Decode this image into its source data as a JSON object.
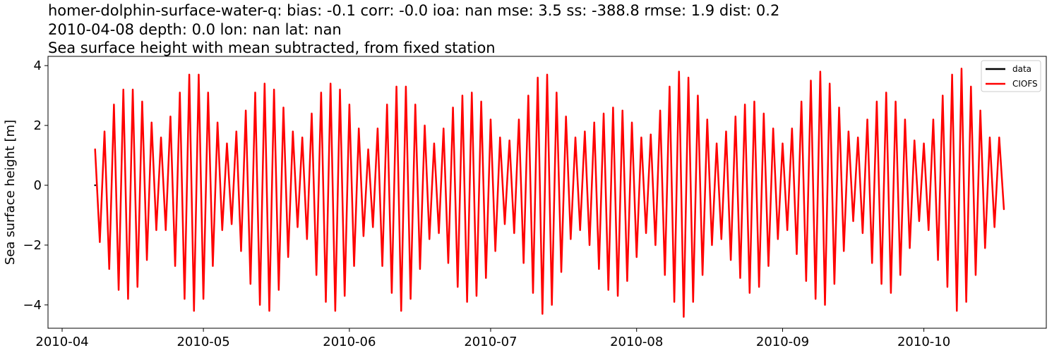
{
  "chart_data": {
    "type": "line",
    "title": "homer-dolphin-surface-water-q: bias: -0.1  corr: -0.0  ioa: nan  mse: 3.5  ss: -388.8  rmse: 1.9  dist: 0.2",
    "subtitle": "2010-04-08 depth: 0.0 lon: nan lat: nan",
    "description": "Sea surface height with mean subtracted, from fixed station",
    "ylabel": "Sea surface height [m]",
    "legend": "upper right",
    "x": [
      "2010-04-08",
      "2010-04-09",
      "2010-04-10",
      "2010-04-11",
      "2010-04-12",
      "2010-04-13",
      "2010-04-14",
      "2010-04-15",
      "2010-04-16",
      "2010-04-17",
      "2010-04-18",
      "2010-04-19",
      "2010-04-20",
      "2010-04-21",
      "2010-04-22",
      "2010-04-23",
      "2010-04-24",
      "2010-04-25",
      "2010-04-26",
      "2010-04-27",
      "2010-04-28",
      "2010-04-29",
      "2010-04-30",
      "2010-05-01",
      "2010-05-02",
      "2010-05-03",
      "2010-05-04",
      "2010-05-05",
      "2010-05-06",
      "2010-05-07",
      "2010-05-08",
      "2010-05-09",
      "2010-05-10",
      "2010-05-11",
      "2010-05-12",
      "2010-05-13",
      "2010-05-14",
      "2010-05-15",
      "2010-05-16",
      "2010-05-17",
      "2010-05-18",
      "2010-05-19",
      "2010-05-20",
      "2010-05-21",
      "2010-05-22",
      "2010-05-23",
      "2010-05-24",
      "2010-05-25",
      "2010-05-26",
      "2010-05-27",
      "2010-05-28",
      "2010-05-29",
      "2010-05-30",
      "2010-05-31",
      "2010-06-01",
      "2010-06-02",
      "2010-06-03",
      "2010-06-04",
      "2010-06-05",
      "2010-06-06",
      "2010-06-07",
      "2010-06-08",
      "2010-06-09",
      "2010-06-10",
      "2010-06-11",
      "2010-06-12",
      "2010-06-13",
      "2010-06-14",
      "2010-06-15",
      "2010-06-16",
      "2010-06-17",
      "2010-06-18",
      "2010-06-19",
      "2010-06-20",
      "2010-06-21",
      "2010-06-22",
      "2010-06-23",
      "2010-06-24",
      "2010-06-25",
      "2010-06-26",
      "2010-06-27",
      "2010-06-28",
      "2010-06-29",
      "2010-06-30",
      "2010-07-01",
      "2010-07-02",
      "2010-07-03",
      "2010-07-04",
      "2010-07-05",
      "2010-07-06",
      "2010-07-07",
      "2010-07-08",
      "2010-07-09",
      "2010-07-10",
      "2010-07-11",
      "2010-07-12",
      "2010-07-13",
      "2010-07-14",
      "2010-07-15",
      "2010-07-16",
      "2010-07-17",
      "2010-07-18",
      "2010-07-19",
      "2010-07-20",
      "2010-07-21",
      "2010-07-22",
      "2010-07-23",
      "2010-07-24",
      "2010-07-25",
      "2010-07-26",
      "2010-07-27",
      "2010-07-28",
      "2010-07-29",
      "2010-07-30",
      "2010-07-31",
      "2010-08-01",
      "2010-08-02",
      "2010-08-03",
      "2010-08-04",
      "2010-08-05",
      "2010-08-06",
      "2010-08-07",
      "2010-08-08",
      "2010-08-09",
      "2010-08-10",
      "2010-08-11",
      "2010-08-12",
      "2010-08-13",
      "2010-08-14",
      "2010-08-15",
      "2010-08-16",
      "2010-08-17",
      "2010-08-18",
      "2010-08-19",
      "2010-08-20",
      "2010-08-21",
      "2010-08-22",
      "2010-08-23",
      "2010-08-24",
      "2010-08-25",
      "2010-08-26",
      "2010-08-27",
      "2010-08-28",
      "2010-08-29",
      "2010-08-30",
      "2010-08-31",
      "2010-09-01",
      "2010-09-02",
      "2010-09-03",
      "2010-09-04",
      "2010-09-05",
      "2010-09-06",
      "2010-09-07",
      "2010-09-08",
      "2010-09-09",
      "2010-09-10",
      "2010-09-11",
      "2010-09-12",
      "2010-09-13",
      "2010-09-14",
      "2010-09-15",
      "2010-09-16",
      "2010-09-17",
      "2010-09-18",
      "2010-09-19",
      "2010-09-20",
      "2010-09-21",
      "2010-09-22",
      "2010-09-23",
      "2010-09-24",
      "2010-09-25",
      "2010-09-26",
      "2010-09-27",
      "2010-09-28",
      "2010-09-29",
      "2010-09-30",
      "2010-10-01",
      "2010-10-02",
      "2010-10-03",
      "2010-10-04",
      "2010-10-05",
      "2010-10-06",
      "2010-10-07",
      "2010-10-08",
      "2010-10-09",
      "2010-10-10",
      "2010-10-11",
      "2010-10-12",
      "2010-10-13",
      "2010-10-14",
      "2010-10-15",
      "2010-10-16",
      "2010-10-17",
      "2010-10-18"
    ],
    "series": [
      {
        "name": "data",
        "color": "#000000",
        "values": [
          0,
          null,
          null,
          null,
          null,
          null,
          null,
          null,
          null,
          null,
          null,
          null,
          null,
          null,
          null,
          null,
          null,
          null,
          null,
          null,
          null,
          null,
          null,
          null,
          null,
          null,
          null,
          null,
          null,
          null,
          null,
          null,
          null,
          null,
          null,
          null,
          null,
          null,
          null,
          null,
          null,
          null,
          null,
          null,
          null,
          null,
          null,
          null,
          null,
          null,
          null,
          null,
          null,
          null,
          null,
          null,
          null,
          null,
          null,
          null,
          null,
          null,
          null,
          null,
          null,
          null,
          null,
          null,
          null,
          null,
          null,
          null,
          null,
          null,
          null,
          null,
          null,
          null,
          null,
          null,
          null,
          null,
          null,
          null,
          null,
          null,
          null,
          null,
          null,
          null,
          null,
          null,
          null,
          null,
          null,
          null,
          null,
          null,
          null,
          null,
          null,
          null,
          null,
          null,
          null,
          null,
          null,
          null,
          null,
          null,
          null,
          null,
          null,
          null,
          null,
          null,
          null,
          null,
          null,
          null,
          null,
          null,
          null,
          null,
          null,
          null,
          null,
          null,
          null,
          null,
          null,
          null,
          null,
          null,
          null,
          null,
          null,
          null,
          null,
          null,
          null,
          null,
          null,
          null,
          null,
          null,
          null,
          null,
          null,
          null,
          null,
          null,
          null,
          null,
          null,
          null,
          null,
          null,
          null,
          null,
          null,
          null,
          null,
          null,
          null,
          null,
          null,
          null,
          null,
          null,
          null,
          null,
          null,
          null,
          null,
          null,
          null,
          null,
          null,
          null,
          null,
          null,
          null,
          null,
          null,
          null,
          null,
          null,
          null,
          null,
          null,
          null,
          null,
          null
        ]
      },
      {
        "name": "CIOFS",
        "color": "#ff0000",
        "values": [
          1.2,
          -1.9,
          1.8,
          -2.8,
          2.7,
          -3.5,
          3.2,
          -3.8,
          3.2,
          -3.4,
          2.8,
          -2.5,
          2.1,
          -1.5,
          1.6,
          -1.5,
          2.3,
          -2.7,
          3.1,
          -3.8,
          3.7,
          -4.2,
          3.7,
          -3.8,
          3.1,
          -2.7,
          2.1,
          -1.5,
          1.4,
          -1.3,
          1.8,
          -2.2,
          2.5,
          -3.3,
          3.1,
          -4.0,
          3.4,
          -4.2,
          3.2,
          -3.5,
          2.6,
          -2.4,
          1.8,
          -1.4,
          1.6,
          -1.8,
          2.4,
          -3.0,
          3.1,
          -3.9,
          3.4,
          -4.2,
          3.2,
          -3.7,
          2.7,
          -2.7,
          1.9,
          -1.7,
          1.2,
          -1.4,
          1.9,
          -2.7,
          2.7,
          -3.6,
          3.3,
          -4.2,
          3.3,
          -3.8,
          2.7,
          -2.8,
          2.0,
          -1.8,
          1.4,
          -1.6,
          1.9,
          -2.6,
          2.6,
          -3.4,
          3.0,
          -3.9,
          3.1,
          -3.7,
          2.8,
          -3.1,
          2.2,
          -2.2,
          1.6,
          -1.3,
          1.5,
          -1.6,
          2.2,
          -2.6,
          3.0,
          -3.6,
          3.6,
          -4.3,
          3.7,
          -4.0,
          3.1,
          -2.9,
          2.3,
          -1.8,
          1.6,
          -1.5,
          1.8,
          -2.0,
          2.1,
          -2.8,
          2.4,
          -3.5,
          2.6,
          -3.7,
          2.5,
          -3.2,
          2.1,
          -2.4,
          1.6,
          -1.6,
          1.7,
          -2.0,
          2.5,
          -3.0,
          3.3,
          -3.9,
          3.8,
          -4.4,
          3.6,
          -3.9,
          3.0,
          -3.0,
          2.2,
          -2.0,
          1.4,
          -1.8,
          1.8,
          -2.5,
          2.3,
          -3.1,
          2.7,
          -3.6,
          2.8,
          -3.4,
          2.4,
          -2.7,
          1.9,
          -1.8,
          1.4,
          -1.5,
          1.9,
          -2.3,
          2.8,
          -3.2,
          3.5,
          -3.8,
          3.8,
          -4.0,
          3.4,
          -3.3,
          2.6,
          -2.2,
          1.8,
          -1.2,
          1.6,
          -1.6,
          2.2,
          -2.6,
          2.8,
          -3.3,
          3.1,
          -3.6,
          2.8,
          -3.0,
          2.2,
          -2.1,
          1.5,
          -1.2,
          1.4,
          -1.5,
          2.2,
          -2.5,
          3.0,
          -3.4,
          3.7,
          -4.2,
          3.9,
          -3.9,
          3.3,
          -3.0,
          2.5,
          -2.1,
          1.6,
          -1.4,
          1.6,
          -0.8
        ]
      }
    ],
    "xlim": [
      "2010-03-29",
      "2010-10-27"
    ],
    "xticks": [
      "2010-04",
      "2010-05",
      "2010-06",
      "2010-07",
      "2010-08",
      "2010-09",
      "2010-10"
    ],
    "ylim": [
      -4.78,
      4.31
    ],
    "yticks": [
      {
        "value": -4,
        "label": "−4"
      },
      {
        "value": -2,
        "label": "−2"
      },
      0,
      2,
      4
    ],
    "grid": false
  }
}
